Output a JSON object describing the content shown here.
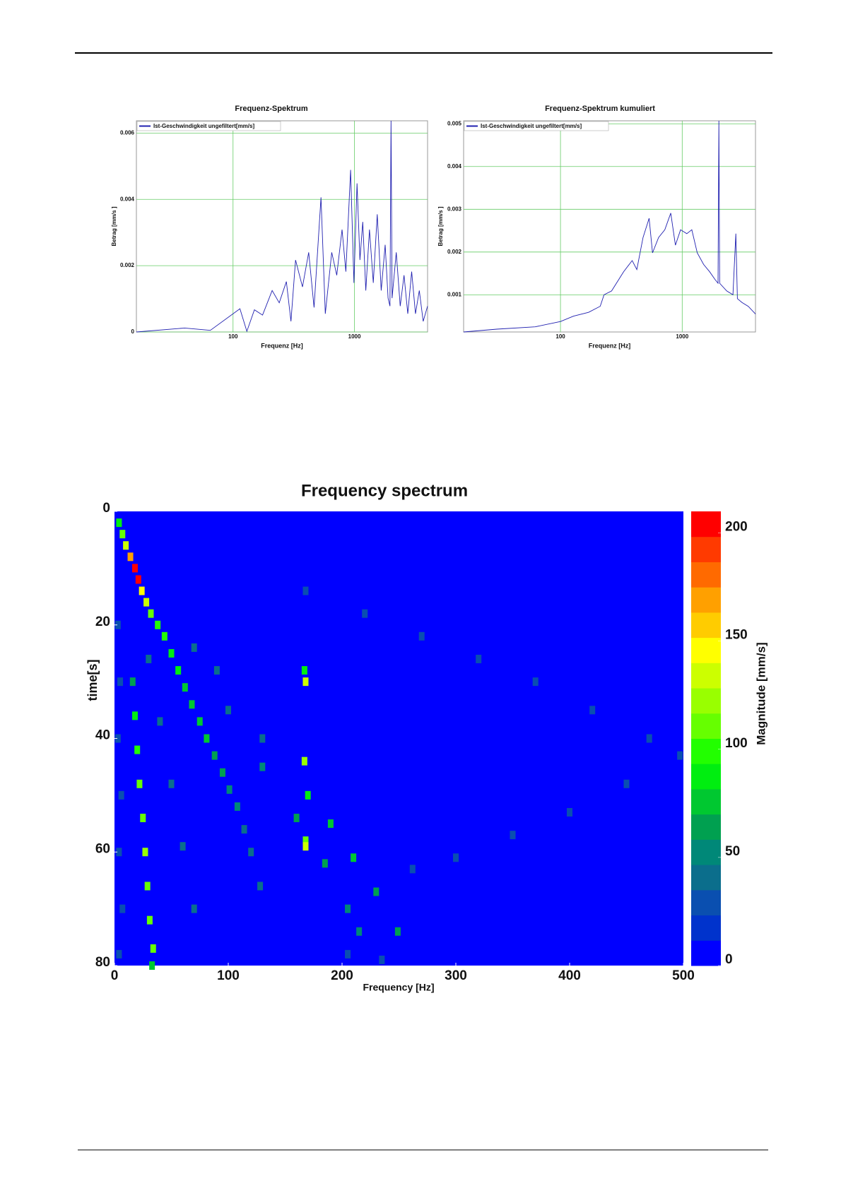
{
  "chart_data": [
    {
      "type": "line",
      "title": "Frequenz-Spektrum",
      "xlabel": "Frequenz [Hz]",
      "ylabel": "Betrag [mm/s ]",
      "xscale": "log",
      "xlim": [
        16,
        4000
      ],
      "ylim": [
        0,
        0.00637
      ],
      "xticks": [
        100,
        1000
      ],
      "yticks": [
        0,
        0.002,
        0.004,
        0.006
      ],
      "grid": true,
      "legend": "upper left",
      "x": [
        16,
        40,
        65,
        114,
        130,
        150,
        175,
        210,
        240,
        275,
        300,
        327,
        373,
        420,
        465,
        530,
        575,
        650,
        715,
        790,
        850,
        930,
        990,
        1050,
        1110,
        1170,
        1240,
        1330,
        1430,
        1540,
        1660,
        1790,
        1890,
        1960,
        2000,
        2040,
        2210,
        2380,
        2560,
        2750,
        2960,
        3180,
        3420,
        3680,
        4000
      ],
      "series": [
        {
          "name": "Ist-Geschwindigkeit ungefiltert[mm/s]",
          "color": "#2020b0",
          "values": [
            0,
            0.00012,
            5e-05,
            0.0007,
            2e-05,
            0.00067,
            0.00051,
            0.00125,
            0.00088,
            0.00152,
            0.00032,
            0.00217,
            0.00136,
            0.0024,
            0.00074,
            0.00406,
            0.00055,
            0.0024,
            0.00171,
            0.00309,
            0.00182,
            0.00489,
            0.00148,
            0.00448,
            0.00217,
            0.00332,
            0.00125,
            0.00309,
            0.00148,
            0.00355,
            0.00125,
            0.00263,
            0.00102,
            0.00078,
            0.00637,
            0.00102,
            0.0024,
            0.00078,
            0.00171,
            0.00055,
            0.00182,
            0.00055,
            0.00125,
            0.00032,
            0.00078
          ]
        }
      ]
    },
    {
      "type": "line",
      "title": "Frequenz-Spektrum kumuliert",
      "xlabel": "Frequenz [Hz]",
      "ylabel": "Betrag [mm/s ]",
      "xscale": "log",
      "xlim": [
        16,
        4000
      ],
      "ylim": [
        0.00013,
        0.00507
      ],
      "xticks": [
        100,
        1000
      ],
      "yticks": [
        0.001,
        0.002,
        0.003,
        0.004,
        0.005
      ],
      "grid": true,
      "legend": "upper left",
      "x": [
        16,
        30,
        62,
        100,
        128,
        170,
        212,
        228,
        263,
        330,
        388,
        424,
        477,
        535,
        570,
        640,
        720,
        805,
        880,
        970,
        1090,
        1200,
        1330,
        1500,
        1680,
        1860,
        1970,
        2000,
        2030,
        2320,
        2610,
        2760,
        2840,
        3100,
        3490,
        4000
      ],
      "series": [
        {
          "name": "Ist-Geschwindigkeit ungefiltert[mm/s]",
          "color": "#2020b0",
          "values": [
            0.00013,
            0.000196,
            0.00025,
            0.000375,
            0.0005,
            0.000589,
            0.000732,
            0.001,
            0.00109,
            0.00154,
            0.0018,
            0.00159,
            0.00234,
            0.00279,
            0.00198,
            0.00234,
            0.00252,
            0.00291,
            0.00216,
            0.00252,
            0.00243,
            0.00252,
            0.00198,
            0.00171,
            0.00154,
            0.00136,
            0.00127,
            0.00507,
            0.00127,
            0.00109,
            0.001,
            0.00243,
            0.00091,
            0.00082,
            0.00073,
            0.00055
          ]
        }
      ]
    },
    {
      "type": "heatmap",
      "title": "Frequency spectrum",
      "xlabel": "Frequency [Hz]",
      "ylabel": "time[s]",
      "colorbar_label": "Magnitude [mm/s]",
      "xlim": [
        0,
        500
      ],
      "ylim": [
        0,
        80
      ],
      "y_inverted": true,
      "xticks": [
        0,
        100,
        200,
        300,
        400,
        500
      ],
      "yticks": [
        0,
        20,
        40,
        60,
        80
      ],
      "clim": [
        0,
        210
      ],
      "cticks": [
        0,
        50,
        100,
        150,
        200
      ],
      "colormap": [
        "#0000ff",
        "#0033cc",
        "#0a4fb0",
        "#0b6e8c",
        "#008878",
        "#00a050",
        "#00c830",
        "#00ee10",
        "#22ff00",
        "#66ff00",
        "#99ff00",
        "#ccff00",
        "#ffff00",
        "#ffcc00",
        "#ffa000",
        "#ff6a00",
        "#ff3a00",
        "#ff0000"
      ],
      "points": [
        [
          4,
          2,
          90
        ],
        [
          7,
          4,
          110
        ],
        [
          10,
          6,
          130
        ],
        [
          14,
          8,
          170
        ],
        [
          18,
          10,
          210
        ],
        [
          21,
          12,
          200
        ],
        [
          24,
          14,
          150
        ],
        [
          28,
          16,
          130
        ],
        [
          32,
          18,
          110
        ],
        [
          38,
          20,
          100
        ],
        [
          44,
          22,
          95
        ],
        [
          50,
          25,
          90
        ],
        [
          56,
          28,
          85
        ],
        [
          62,
          31,
          80
        ],
        [
          68,
          34,
          75
        ],
        [
          75,
          37,
          75
        ],
        [
          81,
          40,
          70
        ],
        [
          88,
          43,
          65
        ],
        [
          95,
          46,
          60
        ],
        [
          101,
          49,
          55
        ],
        [
          108,
          52,
          50
        ],
        [
          114,
          56,
          45
        ],
        [
          120,
          60,
          40
        ],
        [
          128,
          66,
          35
        ],
        [
          16,
          30,
          60
        ],
        [
          18,
          36,
          90
        ],
        [
          20,
          42,
          100
        ],
        [
          22,
          48,
          110
        ],
        [
          25,
          54,
          115
        ],
        [
          27,
          60,
          120
        ],
        [
          29,
          66,
          110
        ],
        [
          31,
          72,
          105
        ],
        [
          34,
          77,
          110
        ],
        [
          33,
          80,
          80
        ],
        [
          3,
          20,
          30
        ],
        [
          5,
          30,
          30
        ],
        [
          3,
          40,
          25
        ],
        [
          6,
          50,
          30
        ],
        [
          4,
          60,
          30
        ],
        [
          7,
          70,
          30
        ],
        [
          4,
          78,
          25
        ],
        [
          30,
          26,
          40
        ],
        [
          40,
          37,
          40
        ],
        [
          50,
          48,
          40
        ],
        [
          60,
          59,
          40
        ],
        [
          70,
          70,
          40
        ],
        [
          70,
          24,
          45
        ],
        [
          100,
          35,
          45
        ],
        [
          130,
          45,
          50
        ],
        [
          160,
          54,
          60
        ],
        [
          185,
          62,
          60
        ],
        [
          205,
          70,
          55
        ],
        [
          215,
          74,
          50
        ],
        [
          205,
          78,
          30
        ],
        [
          90,
          28,
          40
        ],
        [
          130,
          40,
          45
        ],
        [
          170,
          50,
          90
        ],
        [
          190,
          55,
          80
        ],
        [
          210,
          61,
          70
        ],
        [
          230,
          67,
          60
        ],
        [
          249,
          74,
          60
        ],
        [
          235,
          79,
          30
        ],
        [
          167,
          28,
          90
        ],
        [
          168,
          30,
          130
        ],
        [
          167,
          44,
          120
        ],
        [
          168,
          58,
          110
        ],
        [
          168,
          59,
          130
        ],
        [
          168,
          14,
          25
        ],
        [
          220,
          18,
          25
        ],
        [
          270,
          22,
          25
        ],
        [
          320,
          26,
          25
        ],
        [
          370,
          30,
          25
        ],
        [
          420,
          35,
          25
        ],
        [
          470,
          40,
          25
        ],
        [
          497,
          43,
          30
        ],
        [
          450,
          48,
          25
        ],
        [
          400,
          53,
          25
        ],
        [
          350,
          57,
          25
        ],
        [
          300,
          61,
          25
        ],
        [
          262,
          63,
          25
        ]
      ]
    }
  ]
}
